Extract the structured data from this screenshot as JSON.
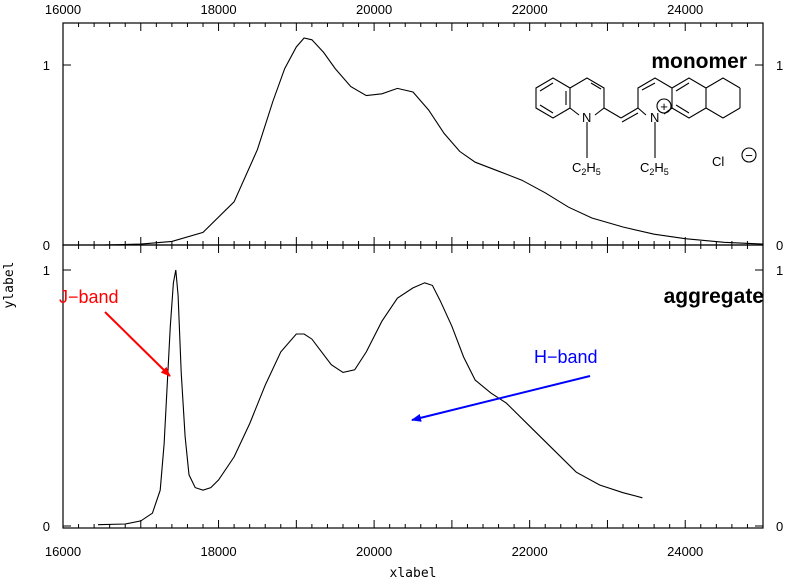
{
  "chart_data": [
    {
      "type": "line",
      "title": "monomer",
      "xlabel": "xlabel",
      "ylabel": "ylabel",
      "xlim": [
        16000,
        25000
      ],
      "ylim": [
        0,
        1.15
      ],
      "x_ticks": [
        "16000",
        "18000",
        "20000",
        "22000",
        "24000"
      ],
      "y_ticks": [
        "0",
        "1"
      ],
      "series": [
        {
          "color": "#000000",
          "x": [
            16500,
            17000,
            17400,
            17800,
            18200,
            18500,
            18700,
            18850,
            19000,
            19100,
            19200,
            19350,
            19500,
            19700,
            19900,
            20100,
            20300,
            20500,
            20700,
            20900,
            21100,
            21300,
            21600,
            21900,
            22200,
            22500,
            22800,
            23200,
            23600,
            24000,
            24500,
            25000
          ],
          "values": [
            0.0,
            0.005,
            0.02,
            0.07,
            0.24,
            0.53,
            0.8,
            0.98,
            1.1,
            1.15,
            1.14,
            1.07,
            0.98,
            0.88,
            0.83,
            0.84,
            0.87,
            0.85,
            0.75,
            0.62,
            0.52,
            0.46,
            0.41,
            0.36,
            0.29,
            0.21,
            0.15,
            0.1,
            0.06,
            0.035,
            0.015,
            0.005
          ]
        }
      ],
      "annotations": {
        "molecule": {
          "N_left": "N",
          "N_right": "N",
          "plus": "+",
          "ethyl_left": "C2H5",
          "ethyl_right": "C2H5",
          "chloride": "Cl",
          "minus": "−"
        }
      }
    },
    {
      "type": "line",
      "title": "aggregate",
      "xlabel": "xlabel",
      "ylabel": "ylabel",
      "xlim": [
        16000,
        25000
      ],
      "ylim": [
        0,
        1.0
      ],
      "x_ticks": [
        "16000",
        "18000",
        "20000",
        "22000",
        "24000"
      ],
      "y_ticks": [
        "0",
        "1"
      ],
      "series": [
        {
          "color": "#000000",
          "x": [
            16450,
            16800,
            17000,
            17150,
            17250,
            17300,
            17340,
            17380,
            17420,
            17450,
            17480,
            17520,
            17570,
            17620,
            17700,
            17800,
            17900,
            18000,
            18200,
            18400,
            18600,
            18800,
            19000,
            19100,
            19200,
            19300,
            19450,
            19600,
            19750,
            19900,
            20100,
            20300,
            20500,
            20650,
            20750,
            20850,
            21000,
            21150,
            21300,
            21500,
            21700,
            22000,
            22300,
            22600,
            22900,
            23200,
            23450
          ],
          "values": [
            0.005,
            0.008,
            0.02,
            0.05,
            0.14,
            0.32,
            0.55,
            0.78,
            0.95,
            1.0,
            0.9,
            0.6,
            0.35,
            0.2,
            0.15,
            0.14,
            0.15,
            0.18,
            0.27,
            0.4,
            0.55,
            0.68,
            0.75,
            0.75,
            0.73,
            0.69,
            0.63,
            0.6,
            0.61,
            0.68,
            0.8,
            0.89,
            0.93,
            0.95,
            0.94,
            0.88,
            0.78,
            0.66,
            0.57,
            0.52,
            0.48,
            0.39,
            0.3,
            0.21,
            0.16,
            0.13,
            0.11
          ]
        }
      ],
      "annotations": {
        "j_band": {
          "text": "J−band",
          "color": "#ff0000"
        },
        "h_band": {
          "text": "H−band",
          "color": "#0000ff"
        }
      }
    }
  ]
}
